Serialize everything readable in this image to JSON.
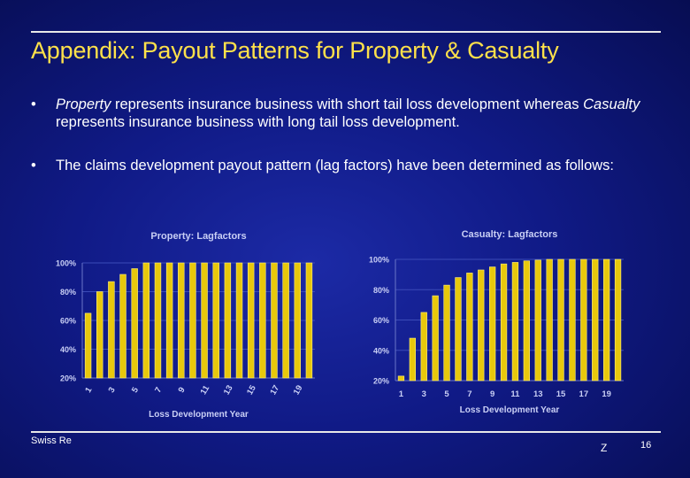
{
  "slide": {
    "title": "Appendix: Payout Patterns for Property & Casualty",
    "bullets": [
      {
        "dot": "•",
        "parts": [
          {
            "text": "Property",
            "italic": true
          },
          {
            "text": " represents insurance business with short tail loss development whereas ",
            "italic": false
          },
          {
            "text": "Casualty",
            "italic": true
          },
          {
            "text": " represents insurance business with long tail loss development.",
            "italic": false
          }
        ]
      },
      {
        "dot": "•",
        "parts": [
          {
            "text": "The claims development payout pattern (lag factors) have been determined as follows:",
            "italic": false
          }
        ]
      }
    ],
    "footer": {
      "left": "Swiss Re",
      "middle": "Z",
      "page": "16"
    }
  },
  "colors": {
    "title": "#ffe14a",
    "bar": "#e8c80c",
    "bar_edge": "#fff27a",
    "chart_text": "#c9cff5"
  },
  "chart_data": [
    {
      "type": "bar",
      "title": "Property: Lagfactors",
      "xlabel": "Loss Development Year",
      "ylabel": "",
      "categories": [
        1,
        2,
        3,
        4,
        5,
        6,
        7,
        8,
        9,
        10,
        11,
        12,
        13,
        14,
        15,
        16,
        17,
        18,
        19,
        20
      ],
      "x_tick_labels": [
        "1",
        "3",
        "5",
        "7",
        "9",
        "11",
        "13",
        "15",
        "17",
        "19"
      ],
      "x_tick_rotated": true,
      "values": [
        65,
        80,
        87,
        92,
        96,
        100,
        100,
        100,
        100,
        100,
        100,
        100,
        100,
        100,
        100,
        100,
        100,
        100,
        100,
        100
      ],
      "ylim": [
        20,
        100
      ],
      "yticks": [
        20,
        40,
        60,
        80,
        100
      ],
      "ytick_labels": [
        "20%",
        "40%",
        "60%",
        "80%",
        "100%"
      ],
      "grid": true
    },
    {
      "type": "bar",
      "title": "Casualty: Lagfactors",
      "xlabel": "Loss Development Year",
      "ylabel": "",
      "categories": [
        1,
        2,
        3,
        4,
        5,
        6,
        7,
        8,
        9,
        10,
        11,
        12,
        13,
        14,
        15,
        16,
        17,
        18,
        19,
        20
      ],
      "x_tick_labels": [
        "1",
        "3",
        "5",
        "7",
        "9",
        "11",
        "13",
        "15",
        "17",
        "19"
      ],
      "x_tick_rotated": false,
      "values": [
        23,
        48,
        65,
        76,
        83,
        88,
        91,
        93,
        95,
        97,
        98,
        99,
        99.5,
        100,
        100,
        100,
        100,
        100,
        100,
        100
      ],
      "ylim": [
        20,
        100
      ],
      "yticks": [
        20,
        40,
        60,
        80,
        100
      ],
      "ytick_labels": [
        "20%",
        "40%",
        "60%",
        "80%",
        "100%"
      ],
      "grid": true
    }
  ]
}
